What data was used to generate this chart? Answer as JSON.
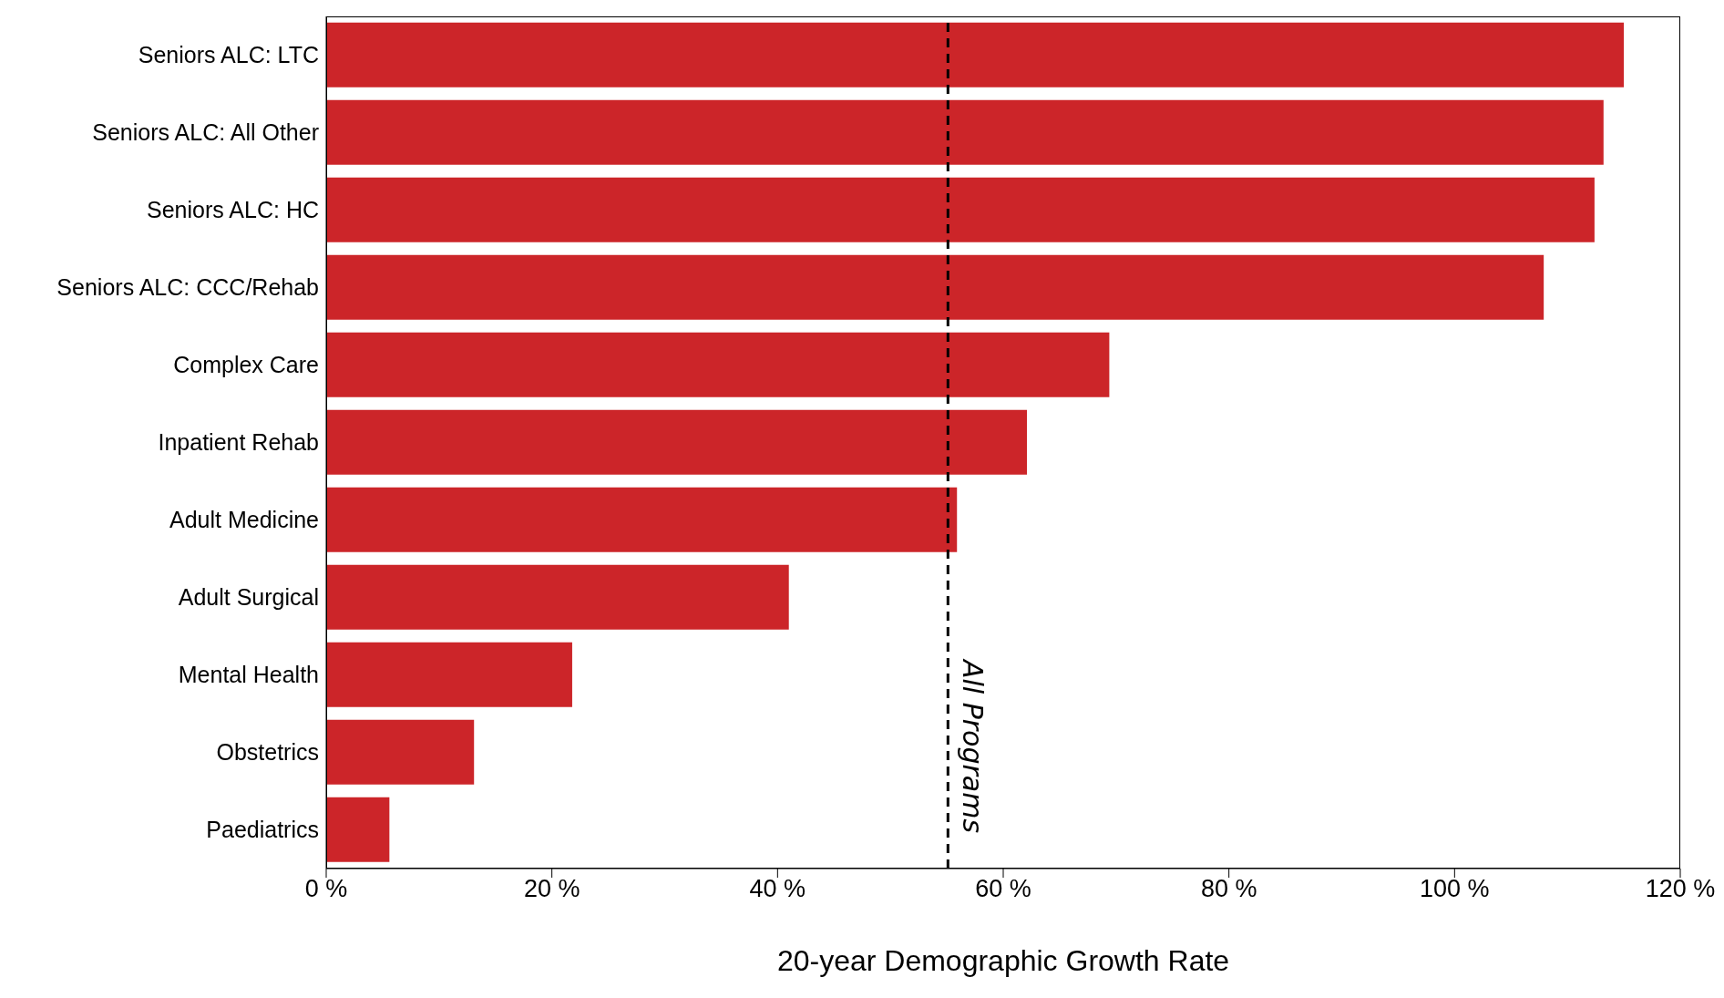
{
  "chart_data": {
    "type": "bar",
    "orientation": "horizontal",
    "xlabel": "20-year Demographic Growth Rate",
    "categories": [
      "Seniors ALC: LTC",
      "Seniors ALC: All Other",
      "Seniors ALC: HC",
      "Seniors ALC: CCC/Rehab",
      "Complex Care",
      "Inpatient Rehab",
      "Adult Medicine",
      "Adult Surgical",
      "Mental Health",
      "Obstetrics",
      "Paediatrics"
    ],
    "values": [
      115,
      113.2,
      112.4,
      107.9,
      69.4,
      62.1,
      55.9,
      41.0,
      21.8,
      13.1,
      5.6
    ],
    "color": "#cc2529",
    "xlim": [
      0,
      120
    ],
    "xticks": [
      {
        "value": 0,
        "label": "0 %"
      },
      {
        "value": 20,
        "label": "20 %"
      },
      {
        "value": 40,
        "label": "40 %"
      },
      {
        "value": 60,
        "label": "60 %"
      },
      {
        "value": 80,
        "label": "80 %"
      },
      {
        "value": 100,
        "label": "100 %"
      },
      {
        "value": 120,
        "label": "120 %"
      }
    ],
    "ref_lines": [
      {
        "axis": "x",
        "value": 55.1,
        "label": "All Programs",
        "color": "#000000",
        "line_style": "dashed"
      }
    ],
    "grid": false,
    "legend": false
  }
}
